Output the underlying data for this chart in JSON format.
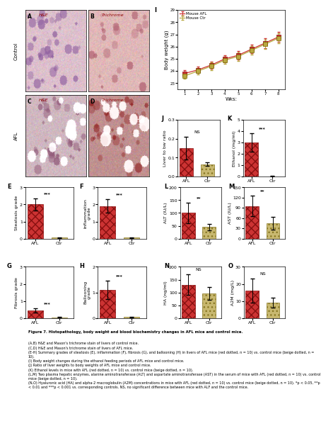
{
  "caption_lines": [
    "Figure 7. Histopathology, body weight and blood biochemistry changes in AFL mice and control mice.",
    "(A,B) H&E and Mason's trichrome stain of livers of control mice.",
    "(C,D) H&E and Mason's trichrome stain of livers of AFL mice.",
    "(E-H) Summary grades of steatosis (E), inflammation (F), fibrosis (G), and ballooning (H) in livers of AFL mice (red dotted, n = 10) vs. control mice (beige dotted, n = 10).",
    "(I) Body weight changes during the ethanol feeding periods of AFL mice and control mice.",
    "(J) Ratio of liver weights to body weights of AFL mice and control mice.",
    "(K) Ethanol levels in mice with AFL (red dotted, n = 10) vs. control mice (beige dotted, n = 10).",
    "(L,M) Two plasma hepatic enzymes, alanine aminotransferase (ALT) and aspartate aminotransferase (AST) in the serum of mice with AFL (red dotted, n = 10) vs. control mice (beige dotted, n = 10).",
    "(N,O) Hyaluronic acid (HA) and alpha-2 macroglobulin (A2M) concentrations in mice with AFL (red dotted, n = 10) vs. control mice (beige dotted, n = 10). *p < 0.05, **p < 0.01 and ***p < 0.001 vs. corresponding controls. NS, no significant difference between mice with ALF and the control mice."
  ],
  "bar_afl_color": "#cc3333",
  "bar_ctr_color": "#c8b870",
  "line_afl_color": "#cc3333",
  "line_ctr_color": "#b8a840",
  "panels": {
    "E": {
      "ylabel": "Steatosis grade",
      "ylim": [
        0,
        3
      ],
      "yticks": [
        0,
        1,
        2,
        3
      ],
      "afl_mean": 2.0,
      "afl_err": 0.35,
      "ctr_mean": 0.05,
      "ctr_err": 0.03,
      "sig": "***"
    },
    "F": {
      "ylabel": "Inflammation\ngrade",
      "ylim": [
        0,
        3
      ],
      "yticks": [
        0,
        1,
        2,
        3
      ],
      "afl_mean": 1.9,
      "afl_err": 0.4,
      "ctr_mean": 0.05,
      "ctr_err": 0.03,
      "sig": "***"
    },
    "G": {
      "ylabel": "Fibrosis grade",
      "ylim": [
        0,
        3
      ],
      "yticks": [
        0,
        1,
        2,
        3
      ],
      "afl_mean": 0.45,
      "afl_err": 0.12,
      "ctr_mean": 0.04,
      "ctr_err": 0.02,
      "sig": "***"
    },
    "H": {
      "ylabel": "Ballooning\ngrade",
      "ylim": [
        0,
        2
      ],
      "yticks": [
        0,
        1,
        2
      ],
      "afl_mean": 1.1,
      "afl_err": 0.35,
      "ctr_mean": 0.04,
      "ctr_err": 0.02,
      "sig": "***"
    },
    "J": {
      "ylabel": "Liver to bw ratio",
      "ylim": [
        0,
        0.3
      ],
      "yticks": [
        0.0,
        0.1,
        0.2,
        0.3
      ],
      "afl_mean": 0.15,
      "afl_err": 0.06,
      "ctr_mean": 0.065,
      "ctr_err": 0.01,
      "sig": "NS"
    },
    "K": {
      "ylabel": "Ethanol (mg/ml)",
      "ylim": [
        0,
        5
      ],
      "yticks": [
        0,
        1,
        2,
        3,
        4,
        5
      ],
      "afl_mean": 3.0,
      "afl_err": 0.8,
      "ctr_mean": 0.03,
      "ctr_err": 0.01,
      "sig": "***"
    },
    "L": {
      "ylabel": "ALT (IU/L)",
      "ylim": [
        0,
        200
      ],
      "yticks": [
        0,
        50,
        100,
        150,
        200
      ],
      "afl_mean": 100,
      "afl_err": 40,
      "ctr_mean": 45,
      "ctr_err": 12,
      "sig": "**"
    },
    "M": {
      "ylabel": "AST (IU/L)",
      "ylim": [
        0,
        150
      ],
      "yticks": [
        0,
        30,
        60,
        90,
        120,
        150
      ],
      "afl_mean": 95,
      "afl_err": 30,
      "ctr_mean": 45,
      "ctr_err": 18,
      "sig": "**"
    },
    "N": {
      "ylabel": "HA (ng/ml)",
      "ylim": [
        0,
        200
      ],
      "yticks": [
        0,
        50,
        100,
        150,
        200
      ],
      "afl_mean": 130,
      "afl_err": 40,
      "ctr_mean": 95,
      "ctr_err": 25,
      "sig": "NS"
    },
    "O": {
      "ylabel": "A2M (mg/L)",
      "ylim": [
        0,
        30
      ],
      "yticks": [
        0,
        10,
        20,
        30
      ],
      "afl_mean": 16,
      "afl_err": 7,
      "ctr_mean": 9,
      "ctr_err": 3,
      "sig": "NS"
    }
  },
  "panel_I": {
    "ylabel": "Body weight (g)",
    "xlabel": "Wks:",
    "weeks": [
      1,
      2,
      3,
      4,
      5,
      6,
      7,
      8
    ],
    "afl_means": [
      23.8,
      24.1,
      24.5,
      25.0,
      25.3,
      25.8,
      26.3,
      26.8
    ],
    "afl_errs": [
      0.25,
      0.25,
      0.3,
      0.3,
      0.35,
      0.35,
      0.4,
      0.4
    ],
    "ctr_means": [
      23.6,
      24.0,
      24.4,
      24.9,
      25.2,
      25.7,
      26.2,
      26.7
    ],
    "ctr_errs": [
      0.25,
      0.25,
      0.3,
      0.3,
      0.35,
      0.35,
      0.4,
      0.4
    ],
    "ylim": [
      22.5,
      29
    ],
    "yticks": [
      23,
      24,
      25,
      26,
      27,
      28,
      29
    ]
  }
}
